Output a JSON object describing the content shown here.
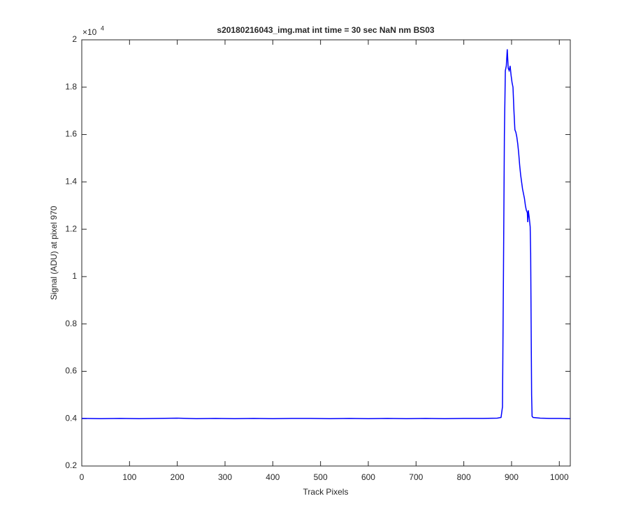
{
  "chart_data": {
    "type": "line",
    "title": "s20180216043_img.mat int time = 30 sec  NaN nm BS03",
    "x_label": "Track Pixels",
    "y_label": "Signal (ADU) at pixel 970",
    "y_multiplier": {
      "base": "×10",
      "power": "4"
    },
    "color": "#0000ff",
    "x": [
      0,
      40,
      80,
      120,
      160,
      200,
      240,
      280,
      320,
      360,
      400,
      440,
      480,
      520,
      560,
      600,
      640,
      680,
      720,
      760,
      800,
      840,
      870,
      878,
      881,
      883,
      885,
      887,
      889,
      891,
      893,
      895,
      897,
      899,
      901,
      903,
      905,
      907,
      909,
      911,
      913,
      915,
      917,
      919,
      921,
      923,
      925,
      927,
      929,
      931,
      933,
      934,
      935,
      937,
      939,
      940,
      941,
      942,
      943,
      945,
      960,
      980,
      1000,
      1023
    ],
    "values": [
      0.401,
      0.4,
      0.401,
      0.4,
      0.401,
      0.402,
      0.4,
      0.401,
      0.4,
      0.401,
      0.4,
      0.401,
      0.401,
      0.4,
      0.401,
      0.4,
      0.401,
      0.4,
      0.401,
      0.4,
      0.401,
      0.401,
      0.402,
      0.405,
      0.45,
      1.0,
      1.6,
      1.87,
      1.89,
      1.96,
      1.88,
      1.87,
      1.89,
      1.85,
      1.82,
      1.8,
      1.7,
      1.62,
      1.61,
      1.59,
      1.56,
      1.52,
      1.47,
      1.43,
      1.4,
      1.37,
      1.35,
      1.33,
      1.3,
      1.28,
      1.27,
      1.23,
      1.28,
      1.25,
      1.21,
      1.1,
      0.8,
      0.5,
      0.41,
      0.405,
      0.402,
      0.401,
      0.401,
      0.4
    ],
    "xlim": [
      0,
      1023
    ],
    "ylim": [
      0.2,
      2
    ],
    "xticks": [
      0,
      100,
      200,
      300,
      400,
      500,
      600,
      700,
      800,
      900,
      1000
    ],
    "yticks": [
      0.2,
      0.4,
      0.6,
      0.8,
      1,
      1.2,
      1.4,
      1.6,
      1.8,
      2
    ],
    "grid": false
  }
}
